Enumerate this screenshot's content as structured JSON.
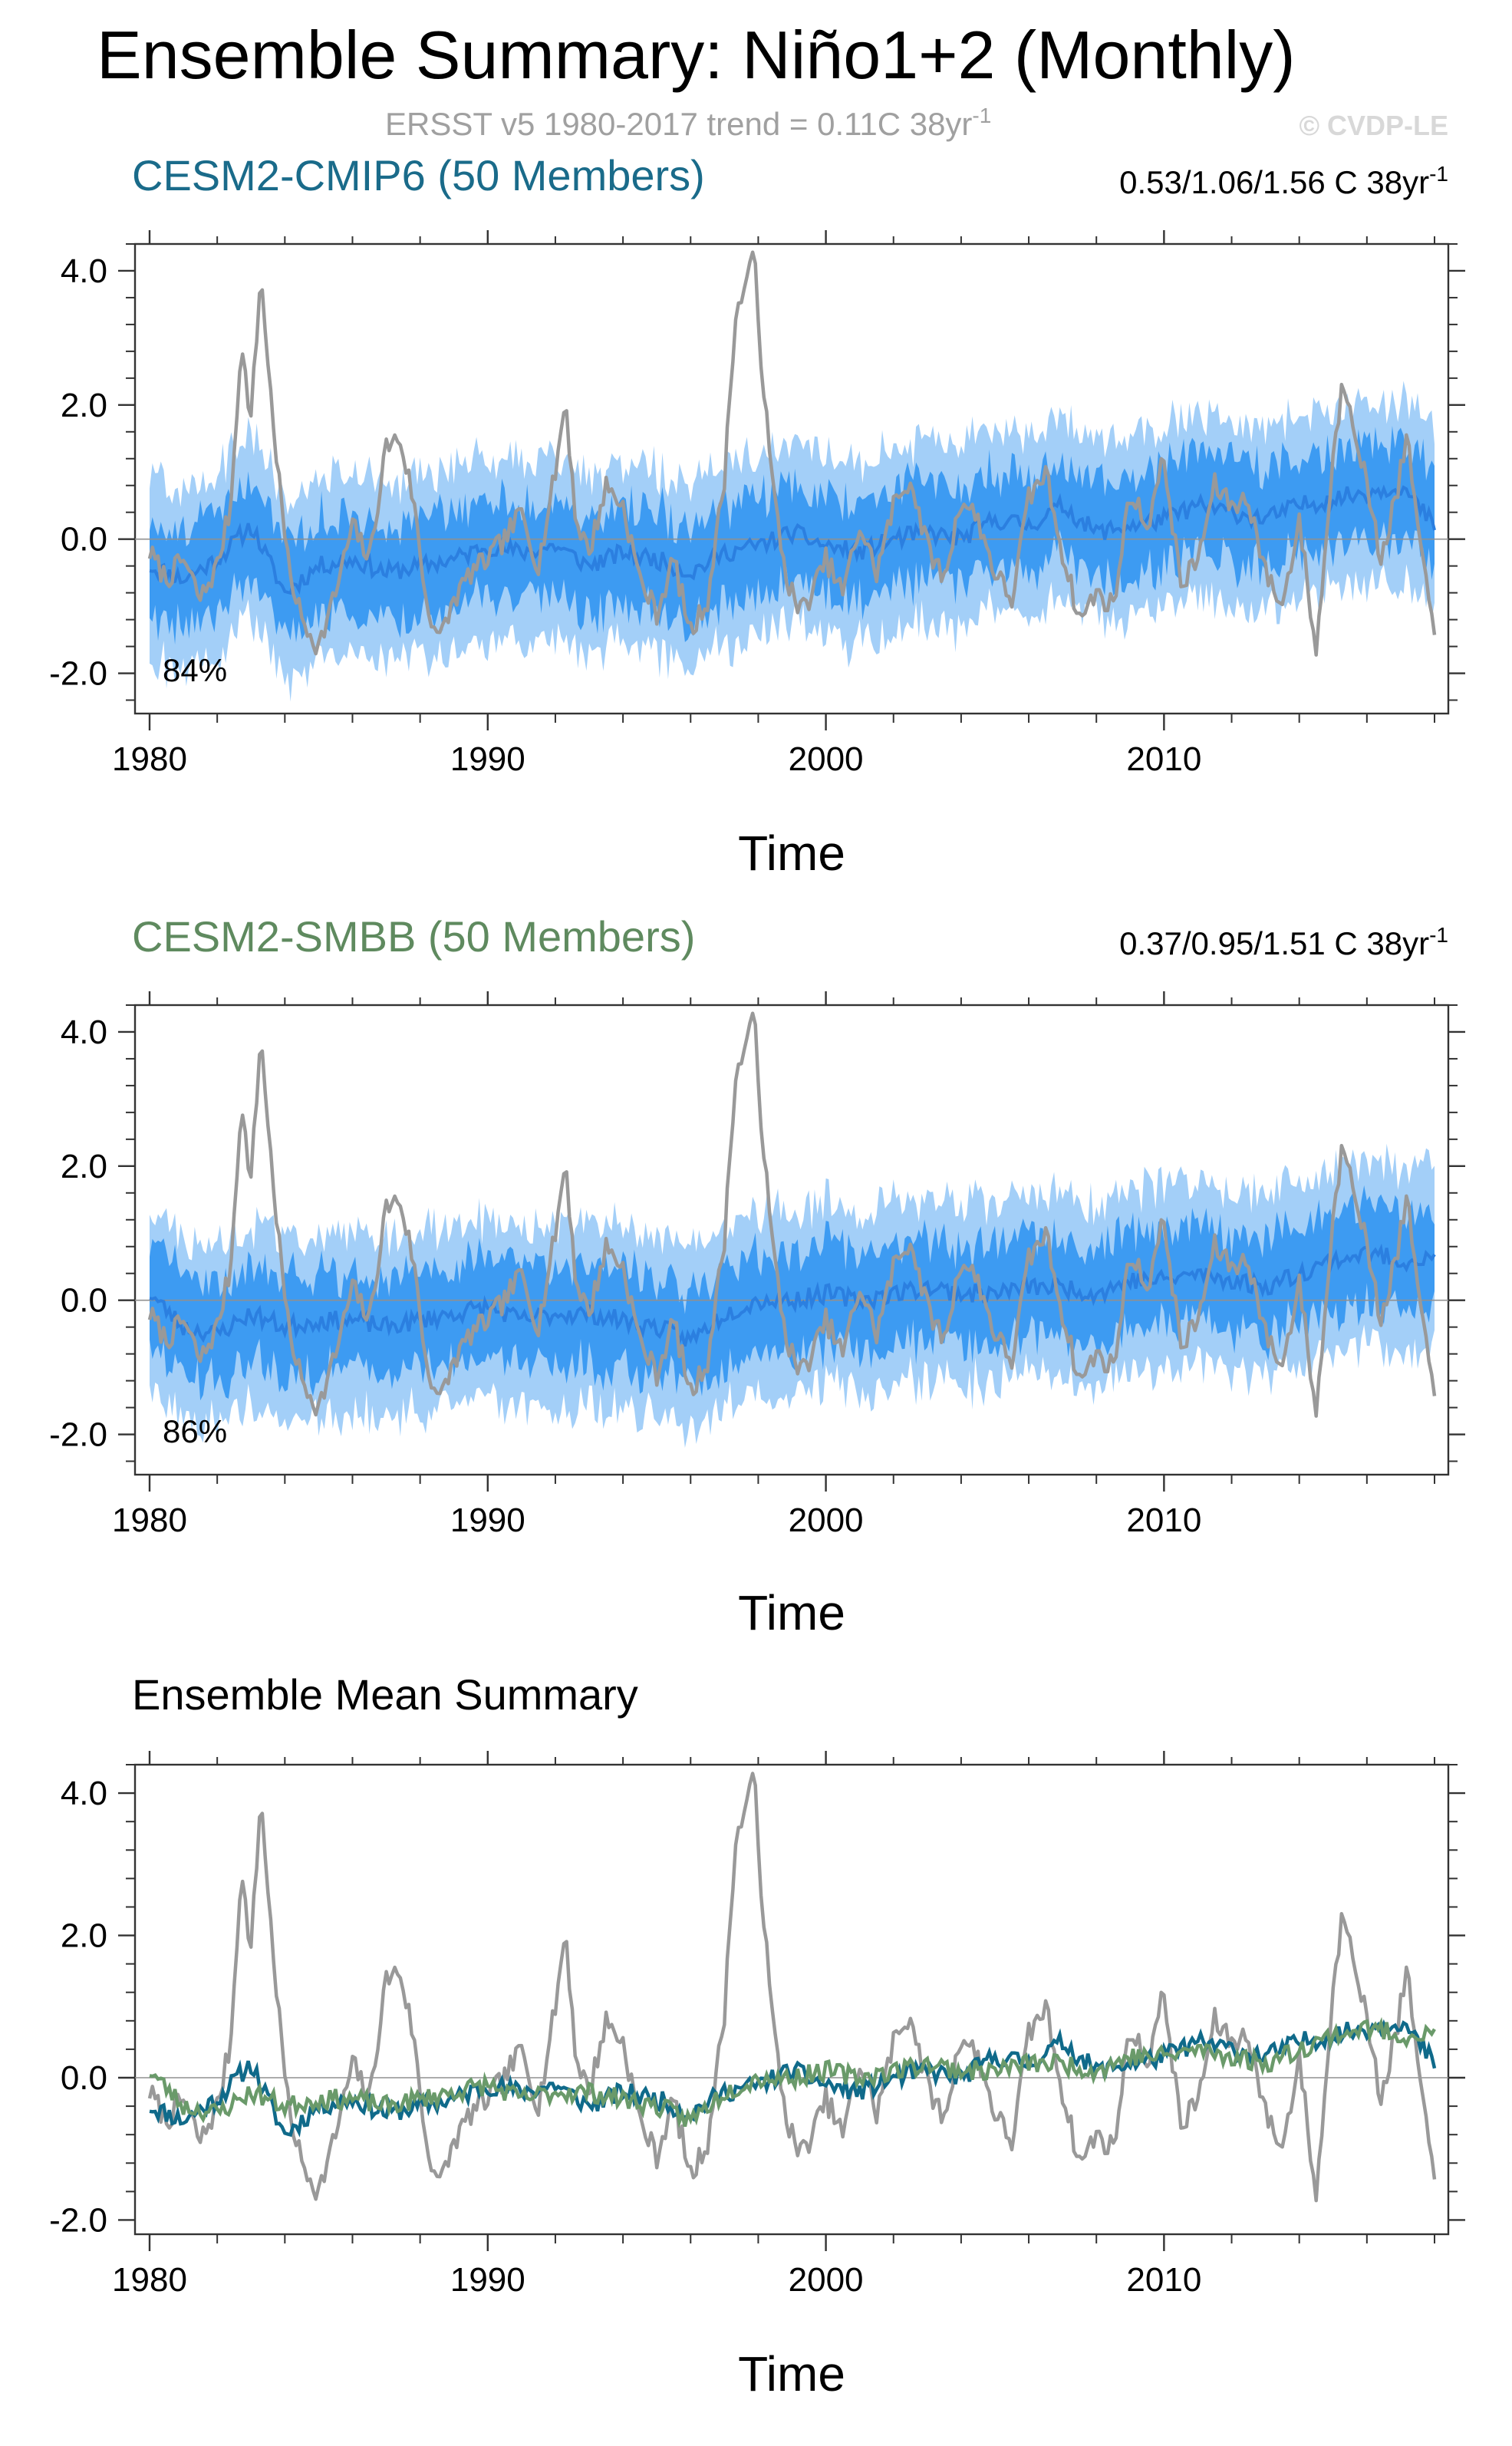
{
  "header": {
    "title": "Ensemble Summary: Niño1+2 (Monthly)",
    "subtitle_prefix": "ERSST v5 1980-2017 trend = 0.11C 38yr",
    "subtitle_sup": "-1",
    "credit": "© CVDP-LE"
  },
  "colors": {
    "observed": "#999999",
    "band_outer": "#a3cff8",
    "band_inner": "#3d9bf2",
    "ensemble_mean_line": "#2b7fe0",
    "cesm2_cmip6": "#0f6a8a",
    "cesm2_smbb": "#6a9a6a",
    "zero_line": "#909090"
  },
  "chart_data": [
    {
      "type": "area",
      "title": "CESM2-CMIP6 (50 Members)",
      "title_color": "#1a6b8a",
      "trend_prefix": "0.53/1.06/1.56 C 38yr",
      "trend_sup": "-1",
      "percent_label": "84%",
      "xlabel": "Time",
      "ylabel": "",
      "xlim": [
        1980,
        2018
      ],
      "ylim": [
        -2.6,
        4.4
      ],
      "x_ticks": [
        "1980",
        "1990",
        "2000",
        "2010"
      ],
      "y_ticks": [
        "4.0",
        "2.0",
        "0.0",
        "-2.0"
      ],
      "series": [
        {
          "name": "ensemble mean",
          "x": [
            1980,
            1981,
            1982,
            1983,
            1984,
            1985,
            1986,
            1987,
            1988,
            1989,
            1990,
            1991,
            1992,
            1993,
            1994,
            1995,
            1996,
            1997,
            1998,
            1999,
            2000,
            2001,
            2002,
            2003,
            2004,
            2005,
            2006,
            2007,
            2008,
            2009,
            2010,
            2011,
            2012,
            2013,
            2014,
            2015,
            2016,
            2017,
            2018
          ],
          "values": [
            -0.4,
            -0.6,
            -0.3,
            0.2,
            -0.8,
            -0.4,
            -0.3,
            -0.5,
            -0.4,
            -0.3,
            -0.1,
            -0.2,
            -0.1,
            -0.4,
            -0.2,
            -0.3,
            -0.5,
            -0.2,
            -0.1,
            0.1,
            -0.1,
            -0.2,
            0.0,
            0.1,
            0.0,
            0.3,
            0.2,
            0.5,
            0.1,
            0.2,
            0.3,
            0.5,
            0.4,
            0.3,
            0.5,
            0.6,
            0.7,
            0.8,
            0.2
          ]
        }
      ]
    },
    {
      "type": "area",
      "title": "CESM2-SMBB (50 Members)",
      "title_color": "#5f8a5f",
      "trend_prefix": "0.37/0.95/1.51 C 38yr",
      "trend_sup": "-1",
      "percent_label": "86%",
      "xlabel": "Time",
      "ylabel": "",
      "xlim": [
        1980,
        2018
      ],
      "ylim": [
        -2.6,
        4.4
      ],
      "x_ticks": [
        "1980",
        "1990",
        "2000",
        "2010"
      ],
      "y_ticks": [
        "4.0",
        "2.0",
        "0.0",
        "-2.0"
      ],
      "series": [
        {
          "name": "ensemble mean",
          "x": [
            1980,
            1981,
            1982,
            1983,
            1984,
            1985,
            1986,
            1987,
            1988,
            1989,
            1990,
            1991,
            1992,
            1993,
            1994,
            1995,
            1996,
            1997,
            1998,
            1999,
            2000,
            2001,
            2002,
            2003,
            2004,
            2005,
            2006,
            2007,
            2008,
            2009,
            2010,
            2011,
            2012,
            2013,
            2014,
            2015,
            2016,
            2017,
            2018
          ],
          "values": [
            0.1,
            -0.4,
            -0.5,
            -0.2,
            -0.4,
            -0.3,
            -0.3,
            -0.4,
            -0.3,
            -0.2,
            -0.1,
            -0.3,
            -0.2,
            -0.2,
            -0.3,
            -0.4,
            -0.6,
            -0.2,
            0.0,
            0.0,
            0.1,
            0.0,
            0.1,
            0.2,
            0.1,
            0.1,
            0.2,
            0.2,
            0.1,
            0.3,
            0.3,
            0.4,
            0.3,
            0.2,
            0.4,
            0.6,
            0.7,
            0.6,
            0.6
          ]
        }
      ]
    },
    {
      "type": "line",
      "title": "Ensemble Mean Summary",
      "title_color": "#000000",
      "xlabel": "Time",
      "ylabel": "",
      "xlim": [
        1980,
        2018
      ],
      "ylim": [
        -2.2,
        4.4
      ],
      "x_ticks": [
        "1980",
        "1990",
        "2000",
        "2010"
      ],
      "y_ticks": [
        "4.0",
        "2.0",
        "0.0",
        "-2.0"
      ],
      "series": [
        {
          "name": "ERSST v5",
          "color_key": "observed"
        },
        {
          "name": "CESM2-CMIP6",
          "color_key": "cesm2_cmip6"
        },
        {
          "name": "CESM2-SMBB",
          "color_key": "cesm2_smbb"
        }
      ]
    }
  ],
  "observed_keypoints": {
    "x": [
      1980.0,
      1980.5,
      1981.0,
      1981.5,
      1982.0,
      1982.4,
      1982.7,
      1983.0,
      1983.3,
      1983.5,
      1983.8,
      1984.1,
      1984.5,
      1985.0,
      1985.5,
      1986.0,
      1986.5,
      1987.0,
      1987.4,
      1987.8,
      1988.2,
      1988.6,
      1989.0,
      1989.5,
      1990.0,
      1990.5,
      1991.0,
      1991.5,
      1992.0,
      1992.3,
      1992.6,
      1993.0,
      1993.5,
      1994.0,
      1994.5,
      1995.0,
      1995.5,
      1996.0,
      1996.5,
      1997.0,
      1997.3,
      1997.6,
      1997.9,
      1998.1,
      1998.4,
      1998.8,
      1999.2,
      1999.6,
      2000.0,
      2000.5,
      2001.0,
      2001.5,
      2002.0,
      2002.5,
      2003.0,
      2003.5,
      2004.0,
      2004.5,
      2005.0,
      2005.5,
      2006.0,
      2006.5,
      2007.0,
      2007.5,
      2008.0,
      2008.5,
      2009.0,
      2009.5,
      2010.0,
      2010.5,
      2011.0,
      2011.5,
      2012.0,
      2012.5,
      2013.0,
      2013.5,
      2014.0,
      2014.5,
      2015.0,
      2015.3,
      2015.6,
      2016.0,
      2016.4,
      2016.8,
      2017.2,
      2017.5,
      2017.8,
      2018.0
    ],
    "values": [
      -0.2,
      -0.6,
      -0.3,
      -0.9,
      -0.4,
      0.5,
      2.9,
      1.8,
      4.0,
      2.6,
      1.0,
      -0.4,
      -1.2,
      -1.6,
      -0.8,
      0.2,
      -0.3,
      1.4,
      1.5,
      0.6,
      -1.0,
      -1.5,
      -0.9,
      -0.5,
      -0.3,
      0.0,
      0.4,
      -0.4,
      1.0,
      2.1,
      0.3,
      -0.2,
      0.8,
      0.5,
      -0.6,
      -1.1,
      -0.3,
      -1.4,
      -0.9,
      0.9,
      3.2,
      3.8,
      4.2,
      2.6,
      0.9,
      -0.5,
      -1.1,
      -0.8,
      -0.3,
      -0.8,
      0.2,
      -0.5,
      0.5,
      0.9,
      -0.1,
      -0.6,
      0.6,
      0.3,
      -0.5,
      -0.9,
      0.6,
      1.0,
      -0.2,
      -1.2,
      -0.8,
      -1.0,
      0.7,
      0.2,
      1.2,
      -0.7,
      -0.3,
      0.8,
      0.5,
      0.6,
      -0.5,
      -1.0,
      0.3,
      -1.7,
      1.2,
      2.4,
      1.8,
      0.8,
      -0.3,
      0.5,
      1.5,
      0.2,
      -0.9,
      -1.4
    ]
  }
}
